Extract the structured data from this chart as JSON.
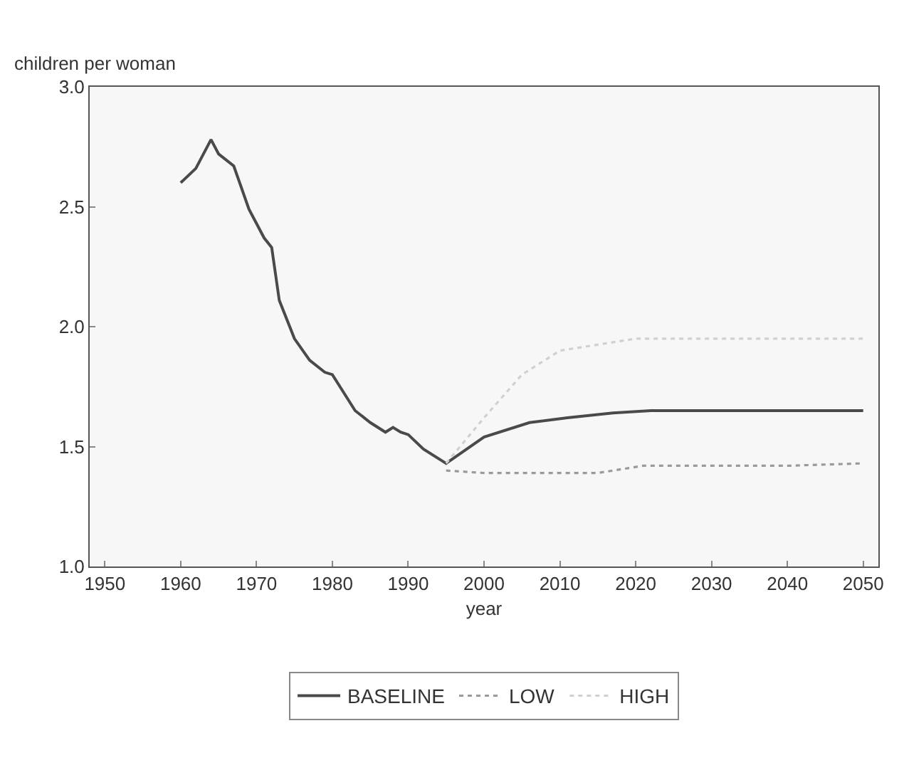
{
  "chart_data": {
    "type": "line",
    "xlabel": "year",
    "ylabel": "children per woman",
    "xlim": [
      1948,
      2052
    ],
    "ylim": [
      1.0,
      3.0
    ],
    "xticks": [
      1950,
      1960,
      1970,
      1980,
      1990,
      2000,
      2010,
      2020,
      2030,
      2040,
      2050
    ],
    "yticks": [
      {
        "value": 1.0,
        "label": "1.0"
      },
      {
        "value": 1.5,
        "label": "1.5"
      },
      {
        "value": 2.0,
        "label": "2.0"
      },
      {
        "value": 2.5,
        "label": "2.5"
      },
      {
        "value": 3.0,
        "label": "3.0"
      }
    ],
    "grid": false,
    "legend": "bottom",
    "marker": "none",
    "series": [
      {
        "name": "BASELINE",
        "color": "#4a4a4a",
        "line_style": "solid",
        "x": [
          1960,
          1962,
          1964,
          1965,
          1967,
          1969,
          1971,
          1972,
          1973,
          1975,
          1977,
          1979,
          1980,
          1981,
          1983,
          1985,
          1987,
          1988,
          1989,
          1990,
          1992,
          1995,
          2000,
          2006,
          2011,
          2017,
          2022,
          2030,
          2040,
          2050
        ],
        "values": [
          2.6,
          2.66,
          2.78,
          2.72,
          2.67,
          2.49,
          2.37,
          2.33,
          2.11,
          1.95,
          1.86,
          1.81,
          1.8,
          1.75,
          1.65,
          1.6,
          1.56,
          1.58,
          1.56,
          1.55,
          1.49,
          1.43,
          1.54,
          1.6,
          1.62,
          1.64,
          1.65,
          1.65,
          1.65,
          1.65
        ]
      },
      {
        "name": "LOW",
        "color": "#9a9a9a",
        "line_style": "dotted",
        "x": [
          1995,
          2000,
          2010,
          2015,
          2021,
          2030,
          2040,
          2050
        ],
        "values": [
          1.4,
          1.39,
          1.39,
          1.39,
          1.42,
          1.42,
          1.42,
          1.43
        ]
      },
      {
        "name": "HIGH",
        "color": "#d0d0d0",
        "line_style": "dotted",
        "x": [
          1995,
          2000,
          2005,
          2010,
          2020,
          2030,
          2040,
          2050
        ],
        "values": [
          1.43,
          1.62,
          1.8,
          1.9,
          1.95,
          1.95,
          1.95,
          1.95
        ]
      }
    ]
  }
}
